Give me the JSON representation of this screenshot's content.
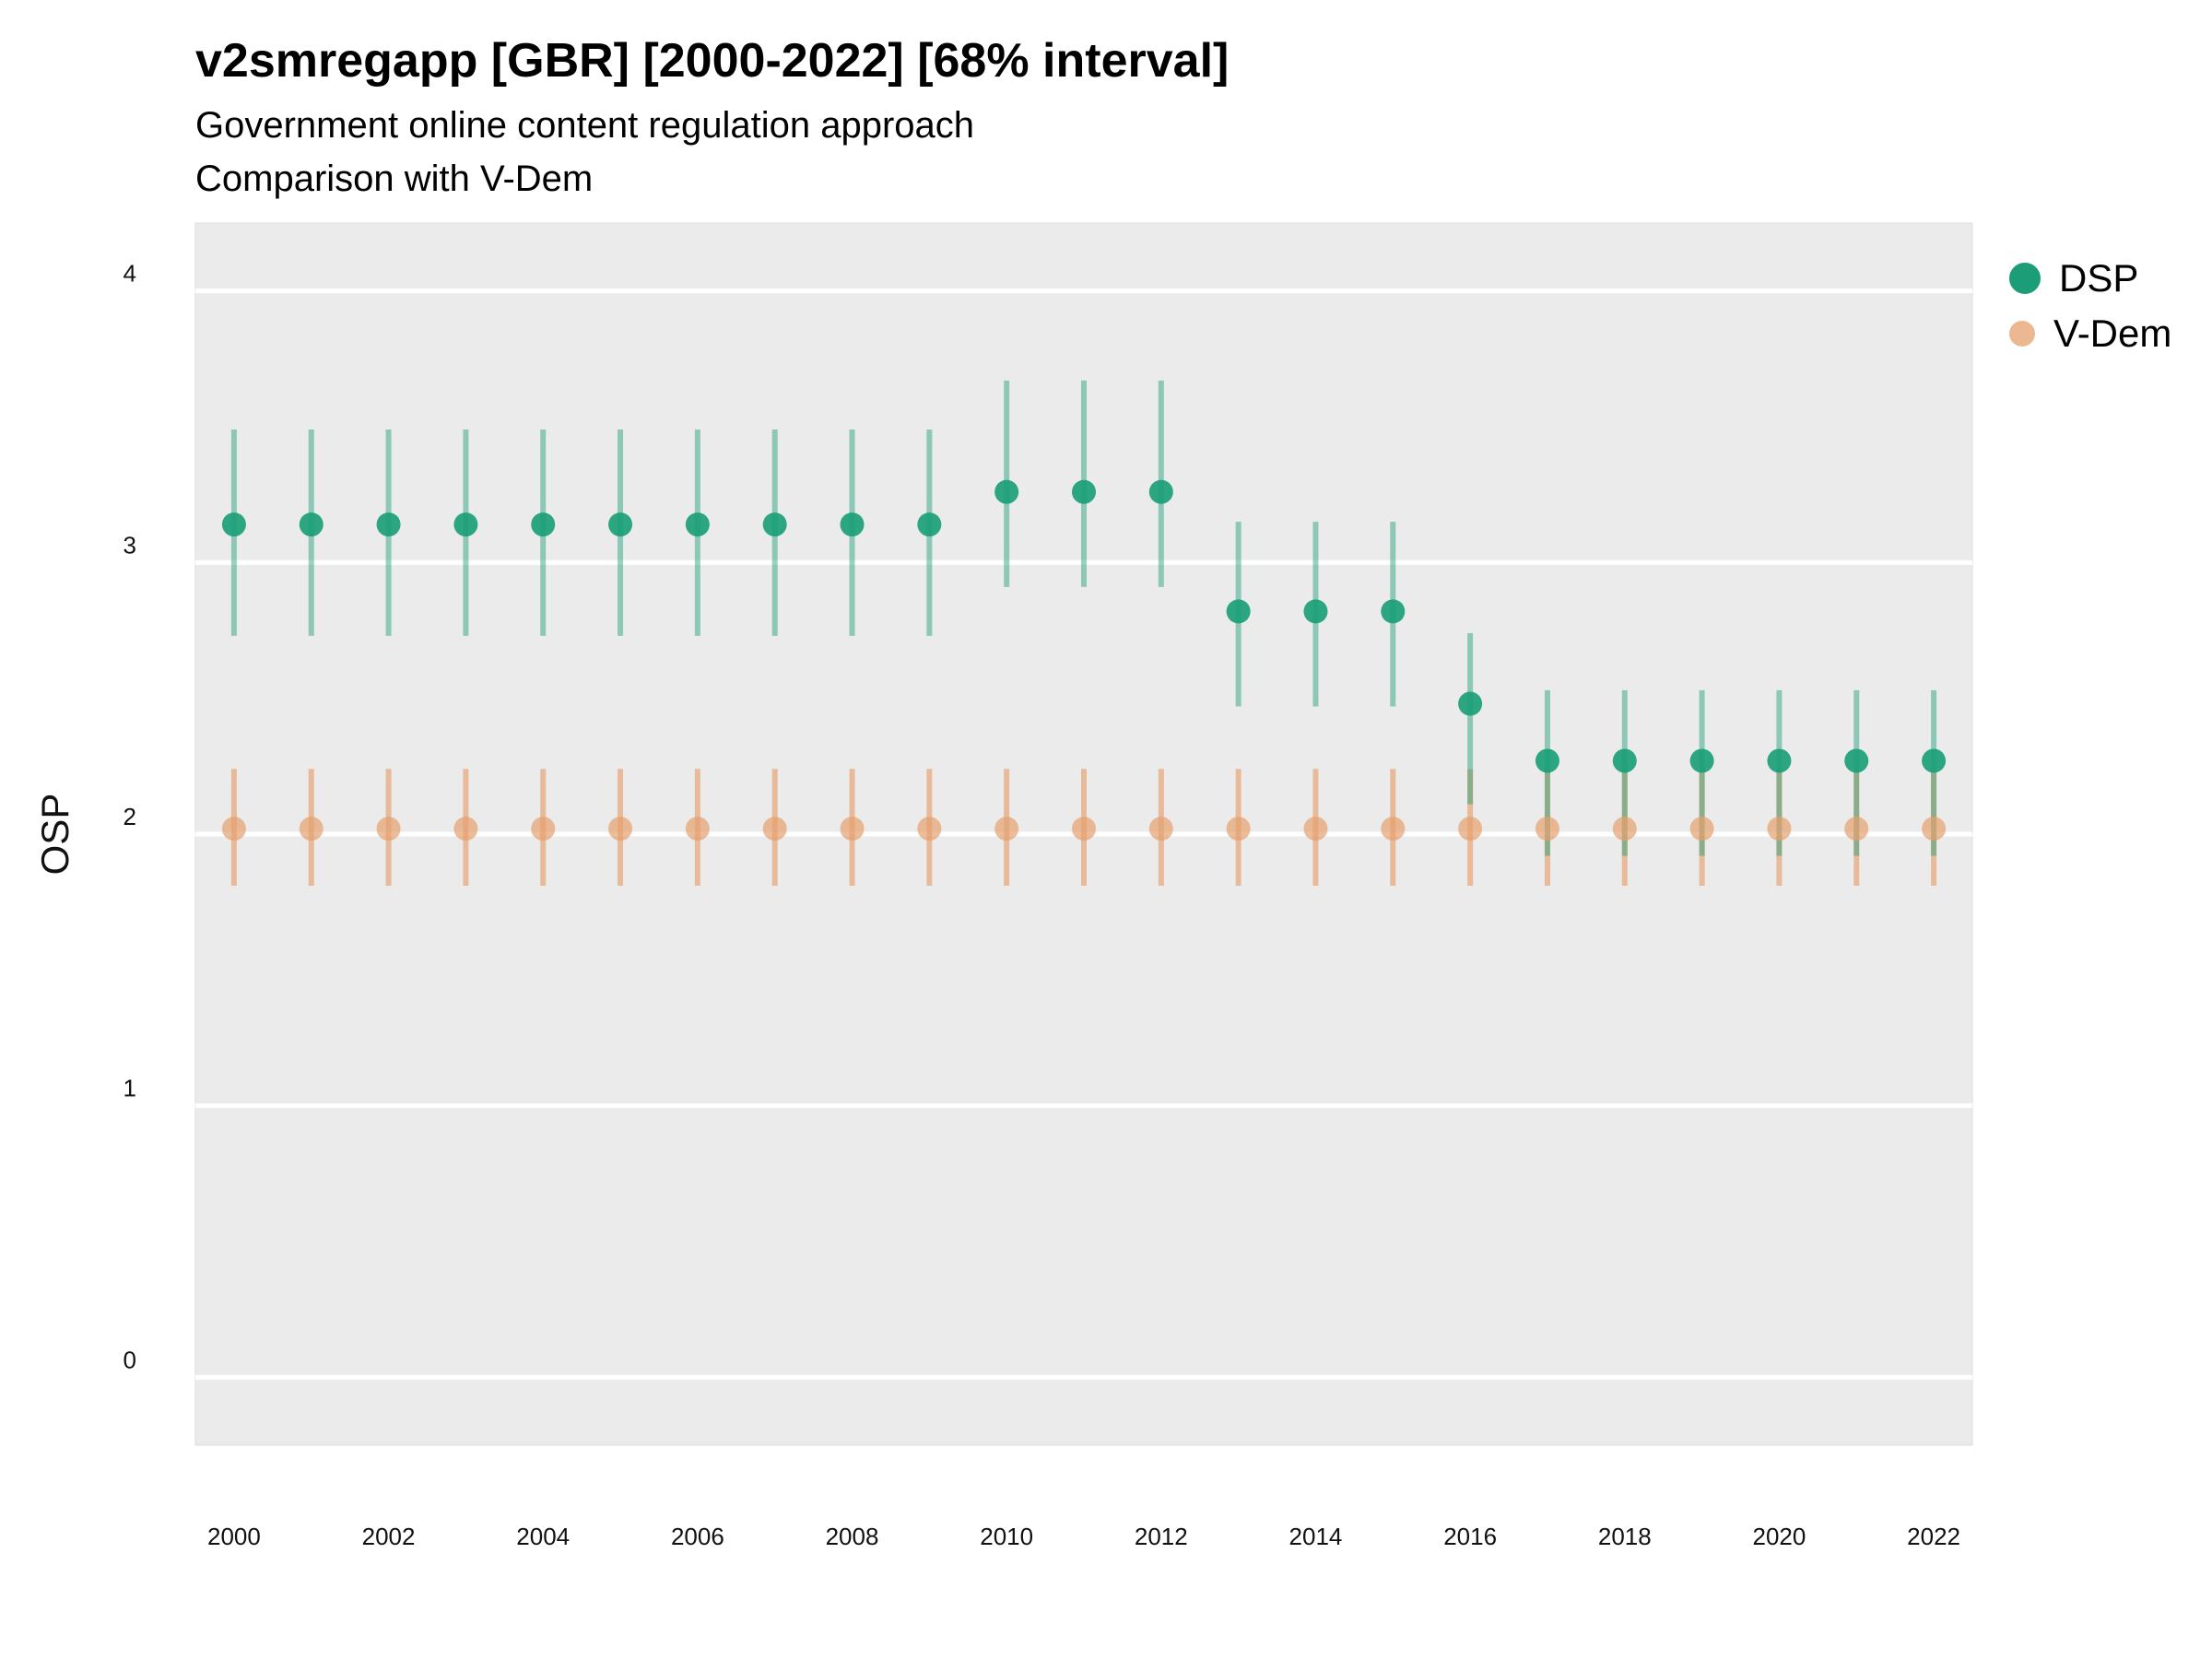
{
  "title": "v2smregapp [GBR] [2000-2022] [68% interval]",
  "subtitle_line1": "Government online content regulation approach",
  "subtitle_line2": "Comparison with V-Dem",
  "colors": {
    "panel": "#ebebeb",
    "grid": "#ffffff",
    "dsp": "#1b9e77",
    "vdem": "#e6a06e"
  },
  "legend": {
    "items": [
      {
        "label": "DSP",
        "color": "#1b9e77"
      },
      {
        "label": "V-Dem",
        "color": "#e6a06e"
      }
    ]
  },
  "chart_data": {
    "type": "scatter",
    "title": "v2smregapp [GBR] [2000-2022] [68% interval]",
    "subtitle": "Government online content regulation approach / Comparison with V-Dem",
    "xlabel": "",
    "ylabel": "OSP",
    "x": [
      2000,
      2001,
      2002,
      2003,
      2004,
      2005,
      2006,
      2007,
      2008,
      2009,
      2010,
      2011,
      2012,
      2013,
      2014,
      2015,
      2016,
      2017,
      2018,
      2019,
      2020,
      2021,
      2022
    ],
    "xticks": [
      2000,
      2002,
      2004,
      2006,
      2008,
      2010,
      2012,
      2014,
      2016,
      2018,
      2020,
      2022
    ],
    "yticks": [
      0,
      1,
      2,
      3,
      4
    ],
    "ylim": [
      -0.25,
      4.25
    ],
    "xlim": [
      1999.5,
      2022.5
    ],
    "grid": "horizontal major lines",
    "legend_position": "right",
    "series": [
      {
        "name": "DSP",
        "values": [
          3.14,
          3.14,
          3.14,
          3.14,
          3.14,
          3.14,
          3.14,
          3.14,
          3.14,
          3.14,
          3.26,
          3.26,
          3.26,
          2.82,
          2.82,
          2.82,
          2.48,
          2.27,
          2.27,
          2.27,
          2.27,
          2.27,
          2.27
        ],
        "lower": [
          2.73,
          2.73,
          2.73,
          2.73,
          2.73,
          2.73,
          2.73,
          2.73,
          2.73,
          2.73,
          2.91,
          2.91,
          2.91,
          2.47,
          2.47,
          2.47,
          2.11,
          1.92,
          1.92,
          1.92,
          1.92,
          1.92,
          1.92
        ],
        "upper": [
          3.49,
          3.49,
          3.49,
          3.49,
          3.49,
          3.49,
          3.49,
          3.49,
          3.49,
          3.49,
          3.67,
          3.67,
          3.67,
          3.15,
          3.15,
          3.15,
          2.74,
          2.53,
          2.53,
          2.53,
          2.53,
          2.53,
          2.53
        ]
      },
      {
        "name": "V-Dem",
        "values": [
          2.02,
          2.02,
          2.02,
          2.02,
          2.02,
          2.02,
          2.02,
          2.02,
          2.02,
          2.02,
          2.02,
          2.02,
          2.02,
          2.02,
          2.02,
          2.02,
          2.02,
          2.02,
          2.02,
          2.02,
          2.02,
          2.02,
          2.02
        ],
        "lower": [
          1.81,
          1.81,
          1.81,
          1.81,
          1.81,
          1.81,
          1.81,
          1.81,
          1.81,
          1.81,
          1.81,
          1.81,
          1.81,
          1.81,
          1.81,
          1.81,
          1.81,
          1.81,
          1.81,
          1.81,
          1.81,
          1.81,
          1.81
        ],
        "upper": [
          2.24,
          2.24,
          2.24,
          2.24,
          2.24,
          2.24,
          2.24,
          2.24,
          2.24,
          2.24,
          2.24,
          2.24,
          2.24,
          2.24,
          2.24,
          2.24,
          2.24,
          2.24,
          2.24,
          2.24,
          2.24,
          2.24,
          2.24
        ]
      }
    ]
  }
}
